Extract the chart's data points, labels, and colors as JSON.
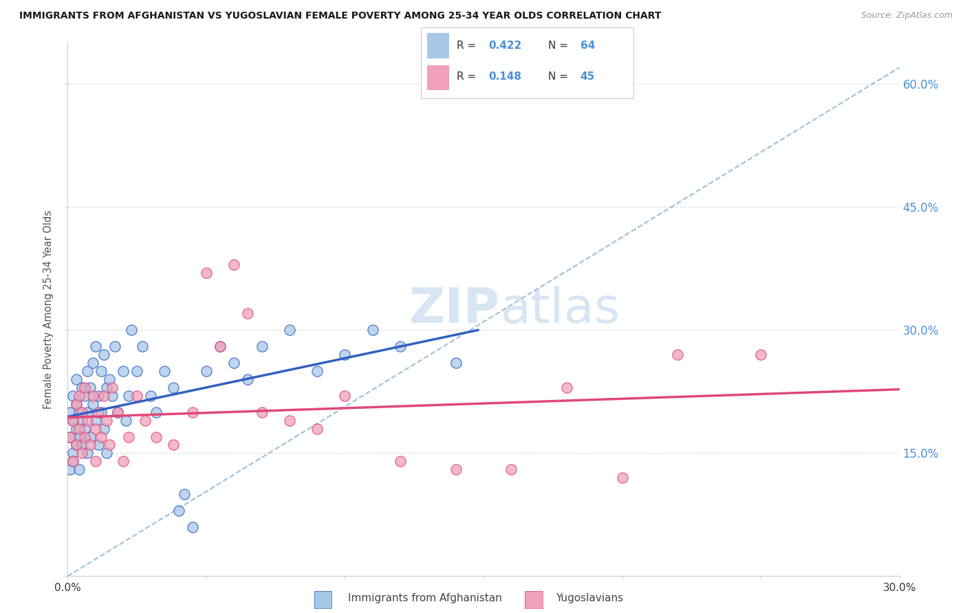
{
  "title": "IMMIGRANTS FROM AFGHANISTAN VS YUGOSLAVIAN FEMALE POVERTY AMONG 25-34 YEAR OLDS CORRELATION CHART",
  "source": "Source: ZipAtlas.com",
  "ylabel": "Female Poverty Among 25-34 Year Olds",
  "xlim": [
    0.0,
    0.3
  ],
  "ylim": [
    0.0,
    0.65
  ],
  "color_blue": "#A8C8E8",
  "color_pink": "#F0A0B8",
  "line_blue": "#3060C0",
  "line_pink": "#E04878",
  "line_dashed_color": "#90B8D8",
  "watermark_zip_color": "#C8DCE8",
  "watermark_atlas_color": "#C0D8E8",
  "background": "#FFFFFF",
  "grid_color": "#DDDDDD",
  "right_tick_color": "#4A90D9",
  "afghanistan_x": [
    0.001,
    0.001,
    0.001,
    0.002,
    0.002,
    0.002,
    0.002,
    0.003,
    0.003,
    0.003,
    0.003,
    0.004,
    0.004,
    0.004,
    0.005,
    0.005,
    0.005,
    0.006,
    0.006,
    0.007,
    0.007,
    0.007,
    0.008,
    0.008,
    0.009,
    0.009,
    0.01,
    0.01,
    0.011,
    0.011,
    0.012,
    0.012,
    0.013,
    0.013,
    0.014,
    0.014,
    0.015,
    0.016,
    0.017,
    0.018,
    0.02,
    0.021,
    0.022,
    0.023,
    0.025,
    0.027,
    0.03,
    0.032,
    0.035,
    0.038,
    0.04,
    0.042,
    0.045,
    0.05,
    0.055,
    0.06,
    0.065,
    0.07,
    0.08,
    0.09,
    0.1,
    0.11,
    0.12,
    0.14
  ],
  "afghanistan_y": [
    0.17,
    0.2,
    0.13,
    0.19,
    0.15,
    0.22,
    0.14,
    0.21,
    0.16,
    0.18,
    0.24,
    0.17,
    0.2,
    0.13,
    0.19,
    0.23,
    0.16,
    0.22,
    0.18,
    0.25,
    0.15,
    0.2,
    0.23,
    0.17,
    0.26,
    0.21,
    0.28,
    0.19,
    0.22,
    0.16,
    0.25,
    0.2,
    0.27,
    0.18,
    0.23,
    0.15,
    0.24,
    0.22,
    0.28,
    0.2,
    0.25,
    0.19,
    0.22,
    0.3,
    0.25,
    0.28,
    0.22,
    0.2,
    0.25,
    0.23,
    0.08,
    0.1,
    0.06,
    0.25,
    0.28,
    0.26,
    0.24,
    0.28,
    0.3,
    0.25,
    0.27,
    0.3,
    0.28,
    0.26
  ],
  "yugoslavian_x": [
    0.001,
    0.002,
    0.002,
    0.003,
    0.003,
    0.004,
    0.004,
    0.005,
    0.005,
    0.006,
    0.006,
    0.007,
    0.008,
    0.009,
    0.01,
    0.01,
    0.011,
    0.012,
    0.013,
    0.014,
    0.015,
    0.016,
    0.018,
    0.02,
    0.022,
    0.025,
    0.028,
    0.032,
    0.038,
    0.045,
    0.05,
    0.055,
    0.06,
    0.065,
    0.07,
    0.08,
    0.09,
    0.1,
    0.12,
    0.14,
    0.16,
    0.18,
    0.2,
    0.22,
    0.25
  ],
  "yugoslavian_y": [
    0.17,
    0.19,
    0.14,
    0.21,
    0.16,
    0.18,
    0.22,
    0.2,
    0.15,
    0.23,
    0.17,
    0.19,
    0.16,
    0.22,
    0.18,
    0.14,
    0.2,
    0.17,
    0.22,
    0.19,
    0.16,
    0.23,
    0.2,
    0.14,
    0.17,
    0.22,
    0.19,
    0.17,
    0.16,
    0.2,
    0.37,
    0.28,
    0.38,
    0.32,
    0.2,
    0.19,
    0.18,
    0.22,
    0.14,
    0.13,
    0.13,
    0.23,
    0.12,
    0.27,
    0.27
  ],
  "afg_line_x0": 0.0,
  "afg_line_x1": 0.148,
  "yug_line_x0": 0.0,
  "yug_line_x1": 0.3,
  "dashed_line_x0": 0.0,
  "dashed_line_x1": 0.3,
  "dashed_line_y0": 0.0,
  "dashed_line_y1": 0.62
}
